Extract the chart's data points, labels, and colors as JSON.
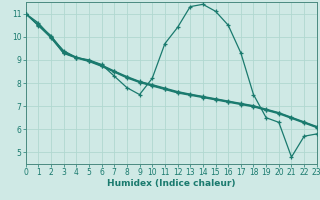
{
  "title": "",
  "xlabel": "Humidex (Indice chaleur)",
  "ylabel": "",
  "bg_color": "#cfe9e5",
  "line_color": "#1a7a6e",
  "grid_color": "#b0d8d0",
  "axis_color": "#4a8a80",
  "series": [
    {
      "x": [
        0,
        1,
        2,
        3,
        4,
        5,
        6,
        7,
        8,
        9,
        10,
        11,
        12,
        13,
        14,
        15,
        16,
        17,
        18,
        19,
        20,
        21,
        22,
        23
      ],
      "y": [
        11.0,
        10.6,
        10.0,
        9.4,
        9.1,
        9.0,
        8.8,
        8.3,
        7.8,
        7.5,
        8.2,
        9.7,
        10.4,
        11.3,
        11.4,
        11.1,
        10.5,
        9.3,
        7.5,
        6.5,
        6.3,
        4.8,
        5.7,
        5.8
      ]
    },
    {
      "x": [
        0,
        1,
        2,
        3,
        4,
        5,
        6,
        7,
        8,
        9,
        10,
        11,
        12,
        13,
        14,
        15,
        16,
        17,
        18,
        19,
        20,
        21,
        22,
        23
      ],
      "y": [
        11.0,
        10.5,
        9.95,
        9.3,
        9.1,
        8.95,
        8.75,
        8.5,
        8.25,
        8.05,
        7.9,
        7.75,
        7.6,
        7.5,
        7.4,
        7.3,
        7.2,
        7.1,
        7.0,
        6.85,
        6.7,
        6.5,
        6.3,
        6.1
      ]
    },
    {
      "x": [
        0,
        1,
        2,
        3,
        4,
        5,
        6,
        7,
        8,
        9,
        10,
        11,
        12,
        13,
        14,
        15,
        16,
        17,
        18,
        19,
        20,
        21,
        22,
        23
      ],
      "y": [
        11.0,
        10.52,
        10.05,
        9.35,
        9.12,
        8.97,
        8.78,
        8.52,
        8.28,
        8.07,
        7.93,
        7.78,
        7.63,
        7.52,
        7.42,
        7.32,
        7.22,
        7.12,
        7.02,
        6.87,
        6.72,
        6.52,
        6.32,
        6.12
      ]
    },
    {
      "x": [
        0,
        1,
        2,
        3,
        4,
        5,
        6,
        7,
        8,
        9,
        10,
        11,
        12,
        13,
        14,
        15,
        16,
        17,
        18,
        19,
        20,
        21,
        22,
        23
      ],
      "y": [
        11.0,
        10.48,
        9.98,
        9.28,
        9.08,
        8.93,
        8.72,
        8.47,
        8.22,
        8.02,
        7.87,
        7.72,
        7.57,
        7.47,
        7.37,
        7.27,
        7.17,
        7.07,
        6.97,
        6.82,
        6.67,
        6.47,
        6.27,
        6.07
      ]
    }
  ],
  "xlim": [
    0,
    23
  ],
  "ylim": [
    4.5,
    11.5
  ],
  "yticks": [
    5,
    6,
    7,
    8,
    9,
    10,
    11
  ],
  "xticks": [
    0,
    1,
    2,
    3,
    4,
    5,
    6,
    7,
    8,
    9,
    10,
    11,
    12,
    13,
    14,
    15,
    16,
    17,
    18,
    19,
    20,
    21,
    22,
    23
  ],
  "marker": "+",
  "markersize": 3.5,
  "linewidth": 0.9,
  "tick_fontsize": 5.5,
  "xlabel_fontsize": 6.5
}
